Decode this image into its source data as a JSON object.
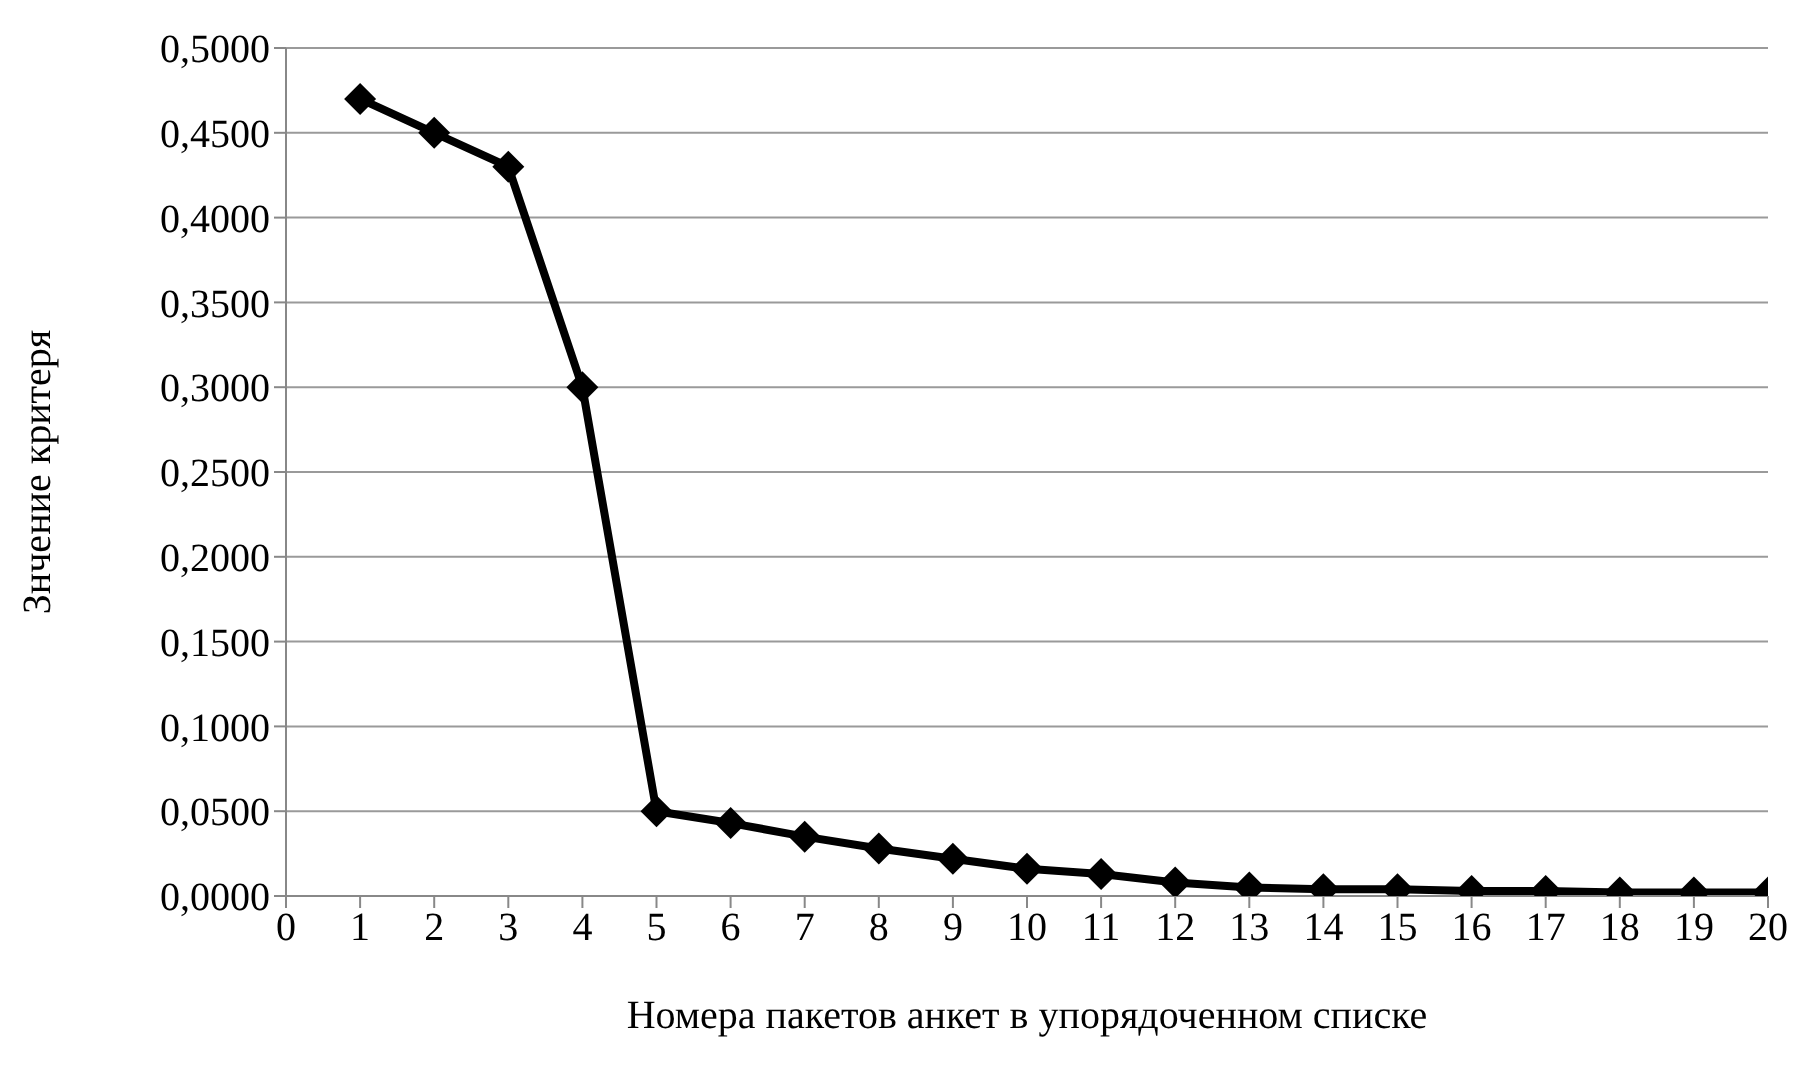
{
  "chart_data": {
    "type": "line",
    "xlabel": "Номера пакетов анкет в упорядоченном списке",
    "ylabel": "Знчение критеря",
    "x": [
      1,
      2,
      3,
      4,
      5,
      6,
      7,
      8,
      9,
      10,
      11,
      12,
      13,
      14,
      15,
      16,
      17,
      18,
      19,
      20
    ],
    "series": [
      {
        "color": "#000000",
        "values": [
          0.47,
          0.45,
          0.43,
          0.3,
          0.05,
          0.043,
          0.035,
          0.028,
          0.022,
          0.016,
          0.013,
          0.008,
          0.005,
          0.004,
          0.004,
          0.003,
          0.003,
          0.002,
          0.002,
          0.002
        ]
      }
    ],
    "xlim": [
      0,
      20
    ],
    "xticks": [
      0,
      1,
      2,
      3,
      4,
      5,
      6,
      7,
      8,
      9,
      10,
      11,
      12,
      13,
      14,
      15,
      16,
      17,
      18,
      19,
      20
    ],
    "ylim": [
      0,
      0.5
    ],
    "yticks": [
      {
        "value": 0,
        "label": "0,0000"
      },
      {
        "value": 0.05,
        "label": "0,0500"
      },
      {
        "value": 0.1,
        "label": "0,1000"
      },
      {
        "value": 0.15,
        "label": "0,1500"
      },
      {
        "value": 0.2,
        "label": "0,2000"
      },
      {
        "value": 0.25,
        "label": "0,2500"
      },
      {
        "value": 0.3,
        "label": "0,3000"
      },
      {
        "value": 0.35,
        "label": "0,3500"
      },
      {
        "value": 0.4,
        "label": "0,4000"
      },
      {
        "value": 0.45,
        "label": "0,4500"
      },
      {
        "value": 0.5,
        "label": "0,5000"
      }
    ],
    "grid": "y",
    "marker": "diamond",
    "line_style": "solid"
  }
}
